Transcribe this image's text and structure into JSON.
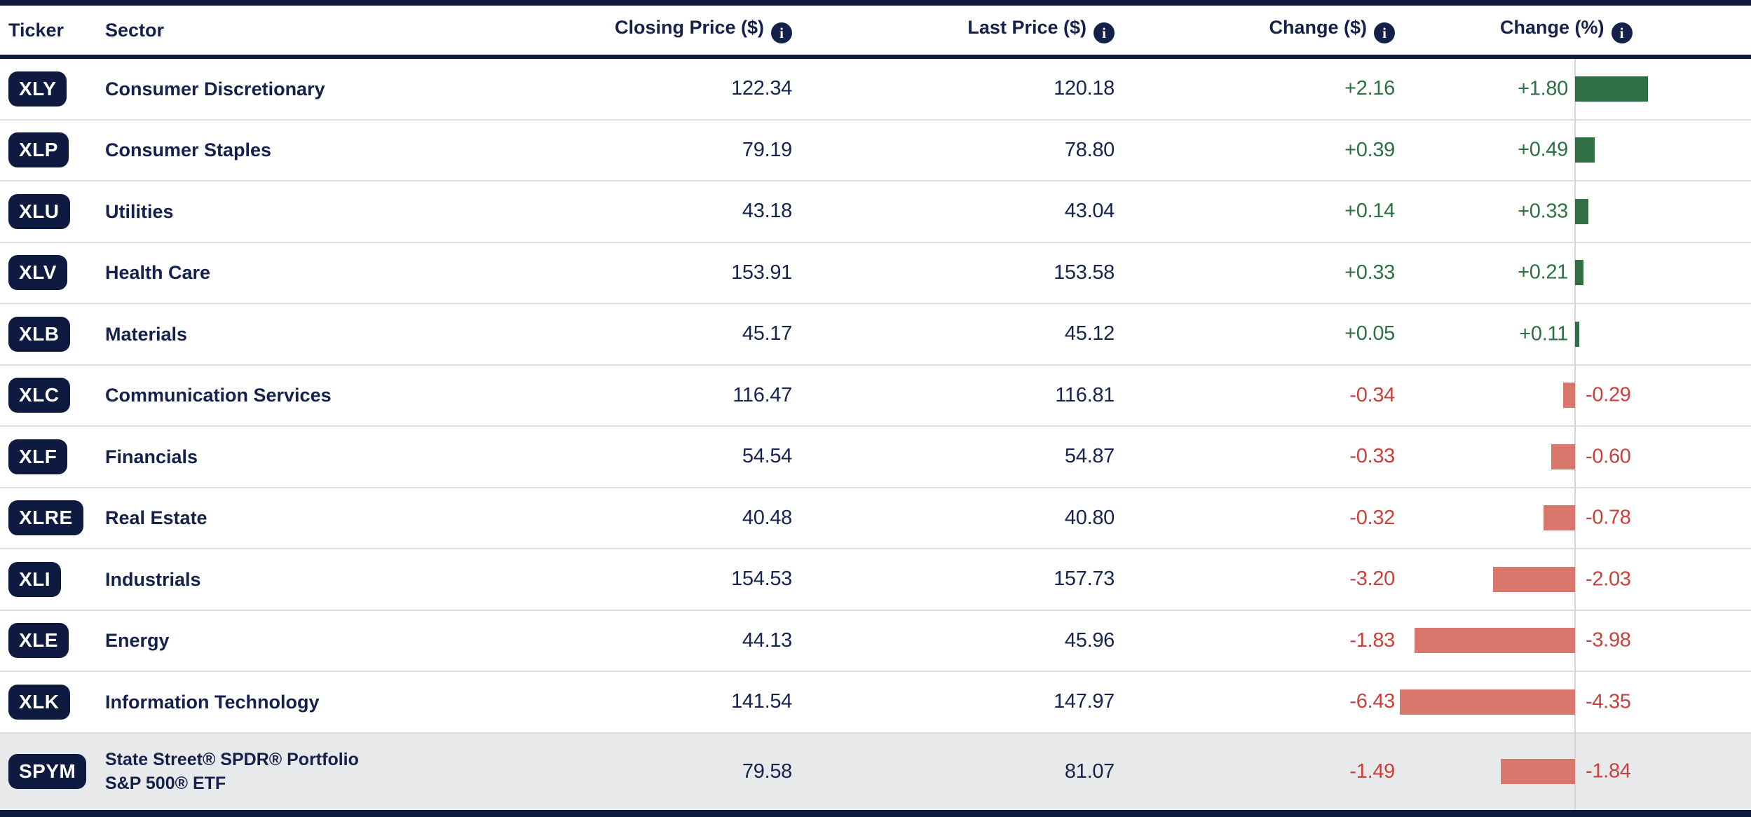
{
  "header": {
    "ticker_label": "Ticker",
    "sector_label": "Sector",
    "closing_label": "Closing Price ($)",
    "last_label": "Last Price ($)",
    "change_label": "Change ($)",
    "change_pct_label": "Change (%)",
    "info_icon_glyph": "i"
  },
  "colors": {
    "navy": "#0e1a40",
    "text_navy": "#14214b",
    "green_text": "#2d7043",
    "green_bar": "#306e44",
    "red_text": "#c9413c",
    "red_bar": "#d9776d",
    "row_separator": "#dadde1",
    "highlight_row_bg": "#e8e9eb",
    "axis_line": "#d4d6d9"
  },
  "table": {
    "rows": [
      {
        "ticker": "XLY",
        "sector": "Consumer Discretionary",
        "closing": "122.34",
        "last": "120.18",
        "change": "+2.16",
        "change_pct": "+1.80",
        "pct": 1.8,
        "highlight": false
      },
      {
        "ticker": "XLP",
        "sector": "Consumer Staples",
        "closing": "79.19",
        "last": "78.80",
        "change": "+0.39",
        "change_pct": "+0.49",
        "pct": 0.49,
        "highlight": false
      },
      {
        "ticker": "XLU",
        "sector": "Utilities",
        "closing": "43.18",
        "last": "43.04",
        "change": "+0.14",
        "change_pct": "+0.33",
        "pct": 0.33,
        "highlight": false
      },
      {
        "ticker": "XLV",
        "sector": "Health Care",
        "closing": "153.91",
        "last": "153.58",
        "change": "+0.33",
        "change_pct": "+0.21",
        "pct": 0.21,
        "highlight": false
      },
      {
        "ticker": "XLB",
        "sector": "Materials",
        "closing": "45.17",
        "last": "45.12",
        "change": "+0.05",
        "change_pct": "+0.11",
        "pct": 0.11,
        "highlight": false
      },
      {
        "ticker": "XLC",
        "sector": "Communication Services",
        "closing": "116.47",
        "last": "116.81",
        "change": "-0.34",
        "change_pct": "-0.29",
        "pct": -0.29,
        "highlight": false
      },
      {
        "ticker": "XLF",
        "sector": "Financials",
        "closing": "54.54",
        "last": "54.87",
        "change": "-0.33",
        "change_pct": "-0.60",
        "pct": -0.6,
        "highlight": false
      },
      {
        "ticker": "XLRE",
        "sector": "Real Estate",
        "closing": "40.48",
        "last": "40.80",
        "change": "-0.32",
        "change_pct": "-0.78",
        "pct": -0.78,
        "highlight": false
      },
      {
        "ticker": "XLI",
        "sector": "Industrials",
        "closing": "154.53",
        "last": "157.73",
        "change": "-3.20",
        "change_pct": "-2.03",
        "pct": -2.03,
        "highlight": false
      },
      {
        "ticker": "XLE",
        "sector": "Energy",
        "closing": "44.13",
        "last": "45.96",
        "change": "-1.83",
        "change_pct": "-3.98",
        "pct": -3.98,
        "highlight": false
      },
      {
        "ticker": "XLK",
        "sector": "Information Technology",
        "closing": "141.54",
        "last": "147.97",
        "change": "-6.43",
        "change_pct": "-4.35",
        "pct": -4.35,
        "highlight": false
      },
      {
        "ticker": "SPYM",
        "sector": "State Street® SPDR® Portfolio S&P 500® ETF",
        "sector_line1": "State Street® SPDR® Portfolio",
        "sector_line2": "S&P 500® ETF",
        "closing": "79.58",
        "last": "81.07",
        "change": "-1.49",
        "change_pct": "-1.84",
        "pct": -1.84,
        "highlight": true
      }
    ]
  },
  "chart_data": {
    "type": "table",
    "title": "Sector ETF price change tracker",
    "columns": [
      "Ticker",
      "Sector",
      "Closing Price ($)",
      "Last Price ($)",
      "Change ($)",
      "Change (%)"
    ],
    "rows": [
      [
        "XLY",
        "Consumer Discretionary",
        122.34,
        120.18,
        2.16,
        1.8
      ],
      [
        "XLP",
        "Consumer Staples",
        79.19,
        78.8,
        0.39,
        0.49
      ],
      [
        "XLU",
        "Utilities",
        43.18,
        43.04,
        0.14,
        0.33
      ],
      [
        "XLV",
        "Health Care",
        153.91,
        153.58,
        0.33,
        0.21
      ],
      [
        "XLB",
        "Materials",
        45.17,
        45.12,
        0.05,
        0.11
      ],
      [
        "XLC",
        "Communication Services",
        116.47,
        116.81,
        -0.34,
        -0.29
      ],
      [
        "XLF",
        "Financials",
        54.54,
        54.87,
        -0.33,
        -0.6
      ],
      [
        "XLRE",
        "Real Estate",
        40.48,
        40.8,
        -0.32,
        -0.78
      ],
      [
        "XLI",
        "Industrials",
        154.53,
        157.73,
        -3.2,
        -2.03
      ],
      [
        "XLE",
        "Energy",
        44.13,
        45.96,
        -1.83,
        -3.98
      ],
      [
        "XLK",
        "Information Technology",
        141.54,
        147.97,
        -6.43,
        -4.35
      ],
      [
        "SPYM",
        "State Street® SPDR® Portfolio S&P 500® ETF",
        79.58,
        81.07,
        -1.49,
        -1.84
      ]
    ],
    "embedded_bar_chart": {
      "type": "bar",
      "orientation": "horizontal",
      "column": "Change (%)",
      "categories": [
        "XLY",
        "XLP",
        "XLU",
        "XLV",
        "XLB",
        "XLC",
        "XLF",
        "XLRE",
        "XLI",
        "XLE",
        "XLK",
        "SPYM"
      ],
      "values": [
        1.8,
        0.49,
        0.33,
        0.21,
        0.11,
        -0.29,
        -0.6,
        -0.78,
        -2.03,
        -3.98,
        -4.35,
        -1.84
      ],
      "xlim": [
        -4.5,
        4.5
      ],
      "positive_color": "#306e44",
      "negative_color": "#d9776d",
      "grid": false,
      "legend": false
    }
  }
}
